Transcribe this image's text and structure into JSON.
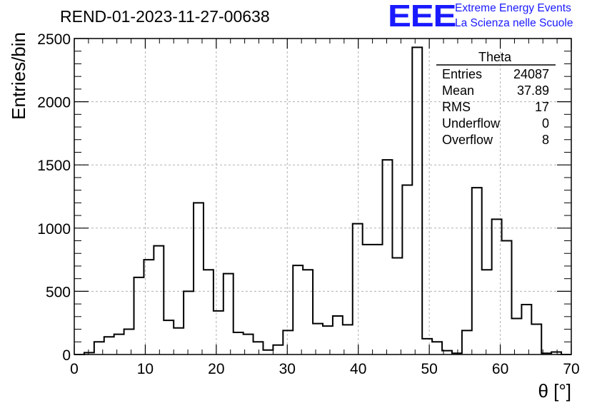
{
  "chart_data": {
    "type": "histogram",
    "title": "REND-01-2023-11-27-00638",
    "xlabel": "θ [°]",
    "ylabel": "Entries/bin",
    "xlim": [
      0,
      70
    ],
    "ylim": [
      0,
      2500
    ],
    "grid": true,
    "x_ticks": [
      0,
      10,
      20,
      30,
      40,
      50,
      60,
      70
    ],
    "y_ticks": [
      0,
      500,
      1000,
      1500,
      2000,
      2500
    ],
    "bin_width": 1.4,
    "bin_edges_start": 0,
    "values": [
      0,
      15,
      100,
      140,
      160,
      200,
      610,
      750,
      860,
      270,
      210,
      500,
      1200,
      670,
      345,
      640,
      175,
      160,
      100,
      35,
      75,
      190,
      705,
      670,
      245,
      225,
      305,
      235,
      1035,
      870,
      870,
      1540,
      765,
      1340,
      2430,
      125,
      100,
      30,
      10,
      190,
      1320,
      670,
      1070,
      900,
      285,
      395,
      240,
      10,
      20,
      0
    ],
    "stats": {
      "name": "Theta",
      "rows": [
        {
          "label": "Entries",
          "value": "24087"
        },
        {
          "label": "Mean",
          "value": "37.89"
        },
        {
          "label": "RMS",
          "value": "17"
        },
        {
          "label": "Underflow",
          "value": "0"
        },
        {
          "label": "Overflow",
          "value": "8"
        }
      ]
    }
  },
  "logo": {
    "text": "EEE",
    "line1": "Extreme Energy Events",
    "line2": "La Scienza nelle Scuole",
    "color": "#1a1aff"
  }
}
